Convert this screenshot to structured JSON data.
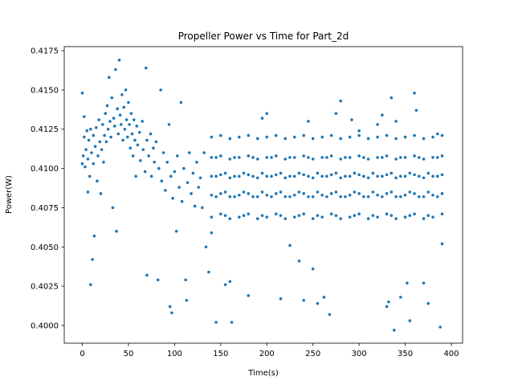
{
  "chart_data": {
    "type": "scatter",
    "title": "Propeller Power vs Time for Part_2d",
    "x_label": "Time(s)",
    "y_label": "Power(W)",
    "xlim": [
      -19.6,
      412.2
    ],
    "ylim": [
      0.39887,
      0.41776
    ],
    "xticks": [
      0,
      50,
      100,
      150,
      200,
      250,
      300,
      350,
      400
    ],
    "yticks": [
      {
        "value": 0.4,
        "label": "0.4000"
      },
      0.4025,
      {
        "value": 0.405,
        "label": "0.4050"
      },
      0.4075,
      {
        "value": 0.41,
        "label": "0.4100"
      },
      0.4125,
      {
        "value": 0.415,
        "label": "0.4150"
      },
      0.4175
    ],
    "color": "#1f77b4",
    "x": [
      0,
      0,
      1,
      2,
      2,
      3,
      4,
      5,
      6,
      6,
      7,
      8,
      9,
      9,
      10,
      11,
      12,
      12,
      13,
      14,
      15,
      16,
      17,
      18,
      19,
      20,
      21,
      22,
      23,
      24,
      25,
      26,
      27,
      28,
      29,
      30,
      31,
      32,
      33,
      34,
      35,
      36,
      37,
      38,
      39,
      40,
      41,
      42,
      43,
      44,
      45,
      46,
      47,
      48,
      49,
      50,
      51,
      52,
      53,
      54,
      55,
      56,
      57,
      58,
      59,
      60,
      62,
      63,
      65,
      66,
      68,
      69,
      70,
      70,
      72,
      74,
      75,
      77,
      78,
      80,
      82,
      83,
      85,
      86,
      88,
      90,
      92,
      94,
      95,
      96,
      97,
      98,
      100,
      102,
      103,
      105,
      107,
      108,
      110,
      112,
      113,
      114,
      116,
      118,
      120,
      122,
      124,
      126,
      128,
      130,
      132,
      134,
      140,
      140,
      140,
      140,
      140,
      145,
      145,
      145,
      150,
      150,
      150,
      150,
      150,
      155,
      155,
      155,
      160,
      160,
      160,
      160,
      160,
      165,
      165,
      165,
      170,
      170,
      170,
      170,
      170,
      175,
      175,
      175,
      180,
      180,
      180,
      180,
      180,
      185,
      185,
      185,
      190,
      190,
      190,
      190,
      190,
      195,
      195,
      195,
      200,
      200,
      200,
      200,
      200,
      205,
      205,
      205,
      210,
      210,
      210,
      210,
      210,
      215,
      215,
      215,
      220,
      220,
      220,
      220,
      220,
      225,
      225,
      225,
      230,
      230,
      230,
      230,
      230,
      235,
      235,
      235,
      240,
      240,
      240,
      240,
      240,
      245,
      245,
      245,
      250,
      250,
      250,
      250,
      250,
      255,
      255,
      255,
      260,
      260,
      260,
      260,
      260,
      265,
      265,
      265,
      270,
      270,
      270,
      270,
      270,
      275,
      275,
      275,
      280,
      280,
      280,
      280,
      280,
      285,
      285,
      285,
      290,
      290,
      290,
      290,
      290,
      295,
      295,
      295,
      300,
      300,
      300,
      300,
      300,
      305,
      305,
      305,
      310,
      310,
      310,
      310,
      310,
      315,
      315,
      315,
      320,
      320,
      320,
      320,
      320,
      325,
      325,
      325,
      330,
      330,
      330,
      330,
      330,
      335,
      335,
      335,
      340,
      340,
      340,
      340,
      340,
      345,
      345,
      345,
      350,
      350,
      350,
      350,
      350,
      355,
      355,
      355,
      360,
      360,
      360,
      360,
      360,
      365,
      365,
      365,
      370,
      370,
      370,
      370,
      370,
      375,
      375,
      375,
      380,
      380,
      380,
      380,
      380,
      385,
      385,
      385,
      390,
      390,
      390,
      390,
      390,
      137,
      140,
      145,
      155,
      160,
      162,
      180,
      195,
      200,
      215,
      225,
      235,
      240,
      245,
      250,
      255,
      262,
      268,
      275,
      280,
      292,
      300,
      320,
      325,
      330,
      332,
      335,
      338,
      340,
      345,
      352,
      355,
      360,
      362,
      370,
      375,
      385,
      388,
      390
    ],
    "values": [
      0.4148,
      0.4103,
      0.4108,
      0.412,
      0.4133,
      0.4101,
      0.4112,
      0.4124,
      0.4085,
      0.4106,
      0.4118,
      0.4095,
      0.4026,
      0.4125,
      0.411,
      0.4042,
      0.4121,
      0.4103,
      0.4057,
      0.4114,
      0.4126,
      0.4092,
      0.4108,
      0.4131,
      0.4117,
      0.4084,
      0.4112,
      0.4128,
      0.4104,
      0.4121,
      0.4135,
      0.4117,
      0.414,
      0.4125,
      0.4158,
      0.413,
      0.412,
      0.4145,
      0.4075,
      0.4132,
      0.4127,
      0.4163,
      0.406,
      0.4138,
      0.4122,
      0.4169,
      0.4134,
      0.4128,
      0.4147,
      0.4118,
      0.4139,
      0.4125,
      0.415,
      0.4131,
      0.412,
      0.4142,
      0.4128,
      0.4113,
      0.4135,
      0.4122,
      0.4108,
      0.4131,
      0.4118,
      0.4095,
      0.4127,
      0.4115,
      0.4123,
      0.4105,
      0.413,
      0.4112,
      0.4098,
      0.4164,
      0.4032,
      0.4118,
      0.4108,
      0.4122,
      0.4095,
      0.4113,
      0.4104,
      0.4117,
      0.4029,
      0.41,
      0.415,
      0.4092,
      0.411,
      0.4086,
      0.4104,
      0.4128,
      0.4012,
      0.4095,
      0.4008,
      0.4081,
      0.4098,
      0.406,
      0.4108,
      0.4088,
      0.4142,
      0.4079,
      0.41,
      0.4029,
      0.4016,
      0.4091,
      0.411,
      0.4084,
      0.4097,
      0.4076,
      0.4104,
      0.4088,
      0.4094,
      0.4075,
      0.411,
      0.405,
      0.4069,
      0.4083,
      0.4095,
      0.4107,
      0.412,
      0.4082,
      0.4095,
      0.4107,
      0.4071,
      0.4084,
      0.4096,
      0.4108,
      0.4121,
      0.4085,
      0.4097,
      0.407,
      0.4068,
      0.4082,
      0.4094,
      0.4106,
      0.4119,
      0.4082,
      0.4095,
      0.4107,
      0.4069,
      0.4083,
      0.4095,
      0.4107,
      0.412,
      0.4085,
      0.4097,
      0.407,
      0.4071,
      0.4084,
      0.4096,
      0.4108,
      0.4121,
      0.4082,
      0.4095,
      0.4107,
      0.4068,
      0.4082,
      0.4094,
      0.4106,
      0.4119,
      0.4085,
      0.4097,
      0.407,
      0.4069,
      0.4083,
      0.4095,
      0.4107,
      0.412,
      0.4082,
      0.4095,
      0.4107,
      0.4071,
      0.4084,
      0.4096,
      0.4108,
      0.4121,
      0.4085,
      0.4097,
      0.407,
      0.4068,
      0.4082,
      0.4094,
      0.4106,
      0.4119,
      0.4082,
      0.4095,
      0.4107,
      0.4069,
      0.4083,
      0.4095,
      0.4107,
      0.412,
      0.4085,
      0.4097,
      0.407,
      0.4071,
      0.4084,
      0.4096,
      0.4108,
      0.4121,
      0.4082,
      0.4095,
      0.4107,
      0.4068,
      0.4082,
      0.4094,
      0.4106,
      0.4119,
      0.4085,
      0.4097,
      0.407,
      0.4069,
      0.4083,
      0.4095,
      0.4107,
      0.412,
      0.4082,
      0.4095,
      0.4107,
      0.4071,
      0.4084,
      0.4096,
      0.4108,
      0.4121,
      0.4085,
      0.4097,
      0.407,
      0.4068,
      0.4082,
      0.4094,
      0.4106,
      0.4119,
      0.4082,
      0.4095,
      0.4107,
      0.4069,
      0.4083,
      0.4095,
      0.4107,
      0.412,
      0.4085,
      0.4097,
      0.407,
      0.4071,
      0.4084,
      0.4096,
      0.4108,
      0.4121,
      0.4082,
      0.4095,
      0.4107,
      0.4068,
      0.4082,
      0.4094,
      0.4106,
      0.4119,
      0.4085,
      0.4097,
      0.407,
      0.4069,
      0.4083,
      0.4095,
      0.4107,
      0.412,
      0.4082,
      0.4095,
      0.4107,
      0.4071,
      0.4084,
      0.4096,
      0.4108,
      0.4121,
      0.4085,
      0.4097,
      0.407,
      0.4068,
      0.4082,
      0.4094,
      0.4106,
      0.4119,
      0.4082,
      0.4095,
      0.4107,
      0.4069,
      0.4083,
      0.4095,
      0.4107,
      0.412,
      0.4085,
      0.4097,
      0.407,
      0.4071,
      0.4084,
      0.4096,
      0.4108,
      0.4121,
      0.4082,
      0.4095,
      0.4107,
      0.4068,
      0.4082,
      0.4094,
      0.4106,
      0.4119,
      0.4085,
      0.4097,
      0.407,
      0.4069,
      0.4083,
      0.4095,
      0.4107,
      0.412,
      0.4082,
      0.4095,
      0.4107,
      0.4071,
      0.4084,
      0.4096,
      0.4108,
      0.4121,
      0.4034,
      0.4059,
      0.4002,
      0.4026,
      0.4028,
      0.4002,
      0.4019,
      0.4132,
      0.4135,
      0.4017,
      0.4051,
      0.4041,
      0.4016,
      0.413,
      0.4036,
      0.4014,
      0.4018,
      0.4007,
      0.4135,
      0.4143,
      0.4131,
      0.4124,
      0.4128,
      0.4134,
      0.4012,
      0.4015,
      0.4145,
      0.3997,
      0.413,
      0.4018,
      0.4027,
      0.4003,
      0.4148,
      0.4137,
      0.4027,
      0.4014,
      0.4122,
      0.3999,
      0.4052
    ]
  }
}
